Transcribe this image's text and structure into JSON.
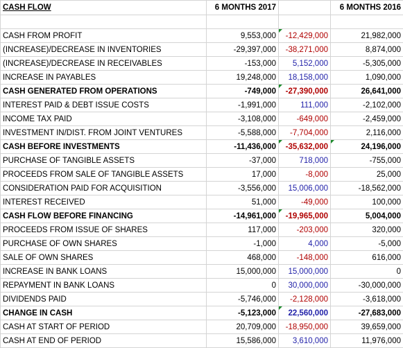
{
  "header": {
    "title": "CASH FLOW",
    "col_a": "6 MONTHS 2017",
    "col_c": "6 MONTHS 2016"
  },
  "rows": [
    {
      "label": "CASH FROM PROFIT",
      "a": "9,553,000",
      "b": "-12,429,000",
      "c": "21,982,000",
      "bold": false,
      "b_color": "neg"
    },
    {
      "label": "(INCREASE)/DECREASE IN INVENTORIES",
      "a": "-29,397,000",
      "b": "-38,271,000",
      "c": "8,874,000",
      "bold": false,
      "b_color": "neg"
    },
    {
      "label": "(INCREASE)/DECREASE IN RECEIVABLES",
      "a": "-153,000",
      "b": "5,152,000",
      "c": "-5,305,000",
      "bold": false,
      "b_color": "pos"
    },
    {
      "label": "INCREASE IN PAYABLES",
      "a": "19,248,000",
      "b": "18,158,000",
      "c": "1,090,000",
      "bold": false,
      "b_color": "pos"
    },
    {
      "label": "CASH GENERATED FROM OPERATIONS",
      "a": "-749,000",
      "b": "-27,390,000",
      "c": "26,641,000",
      "bold": true,
      "b_color": "neg"
    },
    {
      "label": "INTEREST PAID & DEBT ISSUE COSTS",
      "a": "-1,991,000",
      "b": "111,000",
      "c": "-2,102,000",
      "bold": false,
      "b_color": "pos"
    },
    {
      "label": "INCOME TAX PAID",
      "a": "-3,108,000",
      "b": "-649,000",
      "c": "-2,459,000",
      "bold": false,
      "b_color": "neg"
    },
    {
      "label": "INVESTMENT IN/DIST. FROM JOINT VENTURES",
      "a": "-5,588,000",
      "b": "-7,704,000",
      "c": "2,116,000",
      "bold": false,
      "b_color": "neg"
    },
    {
      "label": "CASH BEFORE INVESTMENTS",
      "a": "-11,436,000",
      "b": "-35,632,000",
      "c": "24,196,000",
      "bold": true,
      "b_color": "neg"
    },
    {
      "label": "PURCHASE OF TANGIBLE ASSETS",
      "a": "-37,000",
      "b": "718,000",
      "c": "-755,000",
      "bold": false,
      "b_color": "pos"
    },
    {
      "label": "PROCEEDS FROM SALE OF TANGIBLE ASSETS",
      "a": "17,000",
      "b": "-8,000",
      "c": "25,000",
      "bold": false,
      "b_color": "neg"
    },
    {
      "label": "CONSIDERATION PAID FOR ACQUISITION",
      "a": "-3,556,000",
      "b": "15,006,000",
      "c": "-18,562,000",
      "bold": false,
      "b_color": "pos"
    },
    {
      "label": "INTEREST RECEIVED",
      "a": "51,000",
      "b": "-49,000",
      "c": "100,000",
      "bold": false,
      "b_color": "neg"
    },
    {
      "label": "CASH FLOW BEFORE FINANCING",
      "a": "-14,961,000",
      "b": "-19,965,000",
      "c": "5,004,000",
      "bold": true,
      "b_color": "neg"
    },
    {
      "label": "PROCEEDS FROM ISSUE OF SHARES",
      "a": "117,000",
      "b": "-203,000",
      "c": "320,000",
      "bold": false,
      "b_color": "neg"
    },
    {
      "label": "PURCHASE OF OWN SHARES",
      "a": "-1,000",
      "b": "4,000",
      "c": "-5,000",
      "bold": false,
      "b_color": "pos"
    },
    {
      "label": "SALE OF OWN SHARES",
      "a": "468,000",
      "b": "-148,000",
      "c": "616,000",
      "bold": false,
      "b_color": "neg"
    },
    {
      "label": "INCREASE IN BANK LOANS",
      "a": "15,000,000",
      "b": "15,000,000",
      "c": "0",
      "bold": false,
      "b_color": "pos"
    },
    {
      "label": "REPAYMENT IN BANK LOANS",
      "a": "0",
      "b": "30,000,000",
      "c": "-30,000,000",
      "bold": false,
      "b_color": "pos"
    },
    {
      "label": "DIVIDENDS PAID",
      "a": "-5,746,000",
      "b": "-2,128,000",
      "c": "-3,618,000",
      "bold": false,
      "b_color": "neg"
    },
    {
      "label": "CHANGE IN CASH",
      "a": "-5,123,000",
      "b": "22,560,000",
      "c": "-27,683,000",
      "bold": true,
      "b_color": "pos"
    },
    {
      "label": "CASH AT START OF PERIOD",
      "a": "20,709,000",
      "b": "-18,950,000",
      "c": "39,659,000",
      "bold": false,
      "b_color": "neg"
    },
    {
      "label": "CASH AT END OF PERIOD",
      "a": "15,586,000",
      "b": "3,610,000",
      "c": "11,976,000",
      "bold": false,
      "b_color": "pos"
    }
  ],
  "colors": {
    "negative_diff": "#b00000",
    "positive_diff": "#1f1fa8",
    "comment_marker": "#1a8a2a",
    "gridline": "#d4d4d4"
  }
}
